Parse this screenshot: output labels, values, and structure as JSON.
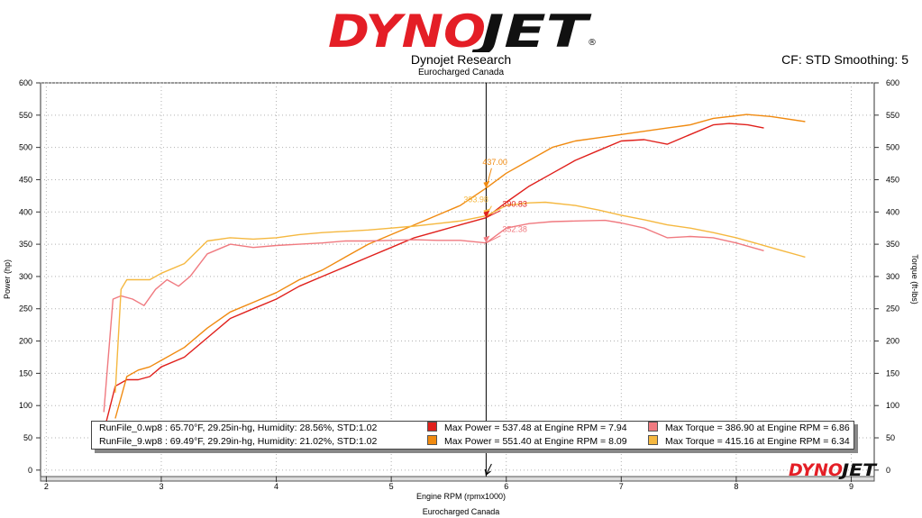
{
  "header": {
    "logo_text": "DYNOJET",
    "title": "Dynojet Research",
    "subtitle": "Eurocharged Canada",
    "cf_text": "CF: STD Smoothing: 5"
  },
  "footer": {
    "caption": "Eurocharged Canada",
    "logo_text": "DYNOJET"
  },
  "colors": {
    "run0_power": "#e0201c",
    "run9_power": "#f08a10",
    "run0_torque": "#f07a80",
    "run9_torque": "#f5b840",
    "cursor": "#000000",
    "grid": "#b0b0b0"
  },
  "legend": {
    "rows": [
      {
        "run": "RunFile_0.wp8 : 65.70°F, 29.25in-hg, Humidity: 28.56%, STD:1.02",
        "power": "Max Power = 537.48 at Engine RPM = 7.94",
        "torque": "Max Torque = 386.90 at Engine RPM = 6.86"
      },
      {
        "run": "RunFile_9.wp8 : 69.49°F, 29.29in-hg, Humidity: 21.02%, STD:1.02",
        "power": "Max Power = 551.40 at Engine RPM = 8.09",
        "torque": "Max Torque = 415.16 at Engine RPM = 6.34"
      }
    ]
  },
  "chart_data": {
    "type": "line",
    "xlabel": "Engine RPM (rpmx1000)",
    "ylabel_left": "Power (hp)",
    "ylabel_right": "Torque (ft-lbs)",
    "xlim": [
      1.95,
      9.2
    ],
    "ylim": [
      -10,
      600
    ],
    "x_ticks": [
      2,
      3,
      4,
      5,
      6,
      7,
      8,
      9
    ],
    "y_ticks": [
      0,
      50,
      100,
      150,
      200,
      250,
      300,
      350,
      400,
      450,
      500,
      550,
      600
    ],
    "grid": true,
    "cursor": {
      "x": 5.825,
      "label": "5.825",
      "annotations": [
        {
          "series": "RunFile_9 Power",
          "value": "437.00",
          "y": 437
        },
        {
          "series": "RunFile_9 Torque",
          "value": "393.98",
          "y": 394
        },
        {
          "series": "RunFile_0 Power",
          "value": "390.83",
          "y": 391
        },
        {
          "series": "RunFile_0 Torque",
          "value": "352.38",
          "y": 352
        }
      ]
    },
    "series": [
      {
        "name": "RunFile_0 Power",
        "x": [
          2.5,
          2.6,
          2.7,
          2.8,
          2.9,
          3.0,
          3.2,
          3.4,
          3.6,
          3.8,
          4.0,
          4.2,
          4.4,
          4.6,
          4.8,
          5.0,
          5.2,
          5.4,
          5.6,
          5.825,
          6.0,
          6.2,
          6.4,
          6.6,
          6.8,
          7.0,
          7.2,
          7.4,
          7.6,
          7.8,
          7.94,
          8.1,
          8.24
        ],
        "y": [
          60,
          130,
          140,
          140,
          145,
          160,
          175,
          205,
          235,
          250,
          265,
          285,
          300,
          315,
          330,
          345,
          360,
          370,
          380,
          391,
          415,
          440,
          460,
          480,
          495,
          510,
          512,
          505,
          520,
          535,
          537,
          535,
          530
        ]
      },
      {
        "name": "RunFile_9 Power",
        "x": [
          2.6,
          2.7,
          2.8,
          2.9,
          3.0,
          3.2,
          3.4,
          3.6,
          3.8,
          4.0,
          4.2,
          4.4,
          4.6,
          4.8,
          5.0,
          5.2,
          5.4,
          5.6,
          5.825,
          6.0,
          6.2,
          6.4,
          6.6,
          6.8,
          7.0,
          7.2,
          7.4,
          7.6,
          7.8,
          8.0,
          8.09,
          8.3,
          8.6
        ],
        "y": [
          80,
          145,
          155,
          160,
          170,
          190,
          220,
          245,
          260,
          275,
          295,
          310,
          330,
          350,
          365,
          380,
          395,
          410,
          437,
          460,
          480,
          500,
          510,
          515,
          520,
          525,
          530,
          535,
          545,
          549,
          551,
          548,
          540
        ]
      },
      {
        "name": "RunFile_0 Torque",
        "x": [
          2.5,
          2.58,
          2.65,
          2.75,
          2.85,
          2.95,
          3.05,
          3.15,
          3.25,
          3.4,
          3.6,
          3.8,
          4.0,
          4.2,
          4.4,
          4.6,
          4.8,
          5.0,
          5.2,
          5.4,
          5.6,
          5.825,
          6.0,
          6.2,
          6.4,
          6.6,
          6.86,
          7.0,
          7.2,
          7.4,
          7.6,
          7.8,
          8.0,
          8.24
        ],
        "y": [
          90,
          265,
          270,
          265,
          255,
          280,
          295,
          285,
          300,
          335,
          350,
          345,
          348,
          350,
          352,
          355,
          355,
          356,
          357,
          356,
          356,
          352,
          375,
          382,
          385,
          386,
          387,
          383,
          375,
          360,
          362,
          360,
          352,
          340
        ]
      },
      {
        "name": "RunFile_9 Torque",
        "x": [
          2.6,
          2.65,
          2.7,
          2.8,
          2.9,
          3.0,
          3.2,
          3.4,
          3.6,
          3.8,
          4.0,
          4.2,
          4.4,
          4.6,
          4.8,
          5.0,
          5.2,
          5.4,
          5.6,
          5.825,
          6.0,
          6.2,
          6.34,
          6.6,
          6.8,
          7.0,
          7.2,
          7.4,
          7.6,
          7.8,
          8.0,
          8.2,
          8.4,
          8.6
        ],
        "y": [
          120,
          280,
          295,
          295,
          295,
          305,
          320,
          355,
          360,
          358,
          360,
          365,
          368,
          370,
          372,
          375,
          378,
          382,
          386,
          394,
          410,
          414,
          415,
          410,
          403,
          395,
          388,
          380,
          375,
          368,
          360,
          350,
          340,
          330
        ]
      }
    ]
  }
}
